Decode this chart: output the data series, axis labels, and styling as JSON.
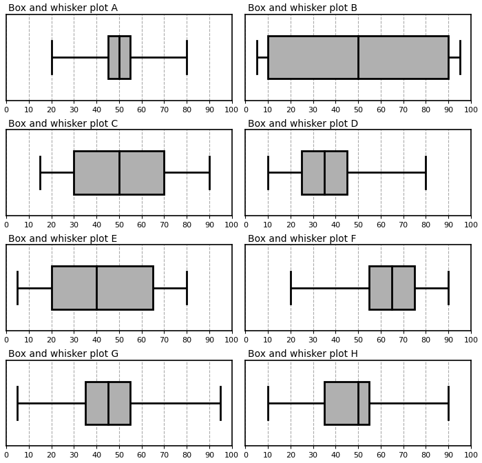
{
  "plots": [
    {
      "title": "Box and whisker plot A",
      "min": 20,
      "q1": 45,
      "median": 50,
      "q3": 55,
      "max": 80
    },
    {
      "title": "Box and whisker plot B",
      "min": 5,
      "q1": 10,
      "median": 50,
      "q3": 90,
      "max": 95
    },
    {
      "title": "Box and whisker plot C",
      "min": 15,
      "q1": 30,
      "median": 50,
      "q3": 70,
      "max": 90
    },
    {
      "title": "Box and whisker plot D",
      "min": 10,
      "q1": 25,
      "median": 35,
      "q3": 45,
      "max": 80
    },
    {
      "title": "Box and whisker plot E",
      "min": 5,
      "q1": 20,
      "median": 40,
      "q3": 65,
      "max": 80
    },
    {
      "title": "Box and whisker plot F",
      "min": 20,
      "q1": 55,
      "median": 65,
      "q3": 75,
      "max": 90
    },
    {
      "title": "Box and whisker plot G",
      "min": 5,
      "q1": 35,
      "median": 45,
      "q3": 55,
      "max": 95
    },
    {
      "title": "Box and whisker plot H",
      "min": 10,
      "q1": 35,
      "median": 50,
      "q3": 55,
      "max": 90
    }
  ],
  "xmin": 0,
  "xmax": 100,
  "xticks": [
    0,
    10,
    20,
    30,
    40,
    50,
    60,
    70,
    80,
    90,
    100
  ],
  "box_color": "#b0b0b0",
  "box_edge_color": "#000000",
  "whisker_color": "#000000",
  "median_color": "#000000",
  "grid_color": "#aaaaaa",
  "bg_color": "#ffffff",
  "title_fontsize": 10,
  "tick_fontsize": 8
}
